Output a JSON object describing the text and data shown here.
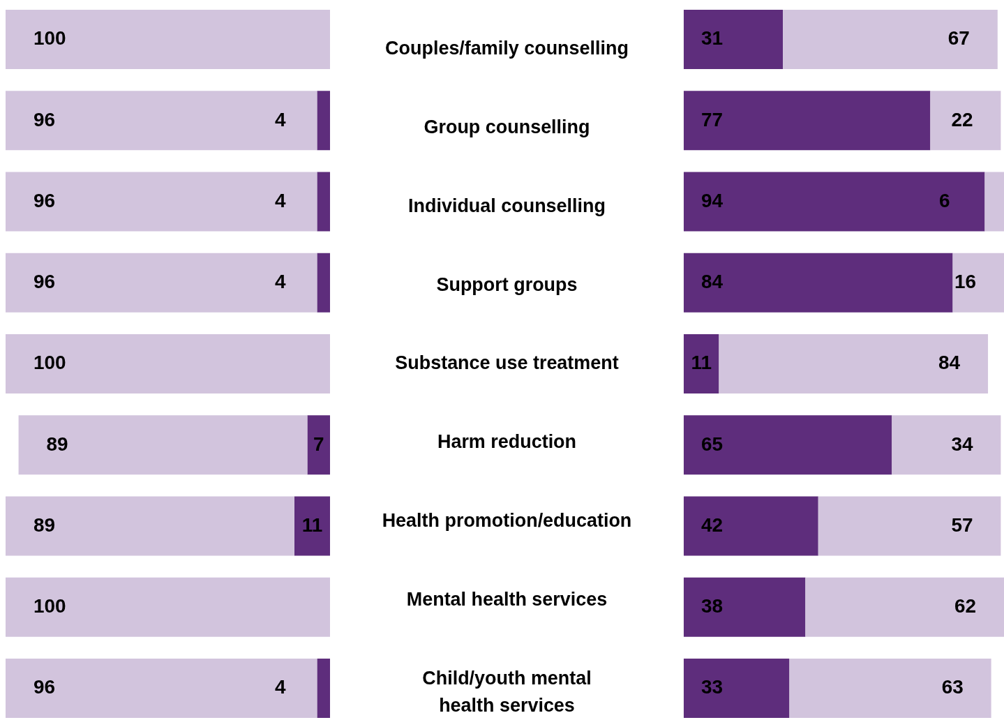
{
  "chart_data": [
    {
      "type": "bar",
      "orientation": "horizontal",
      "stacked": true,
      "data_labels": true,
      "tick_labels": false,
      "xlim": [
        100,
        0
      ],
      "categories": [
        null,
        null,
        null,
        null,
        null,
        null,
        null,
        null,
        null
      ],
      "series": [
        {
          "color": "#5e2d7c",
          "values": [
            null,
            4,
            4,
            4,
            null,
            7,
            11,
            null,
            4
          ]
        },
        {
          "color": "#d2c4dd",
          "values": [
            100,
            96,
            96,
            96,
            100,
            89,
            89,
            100,
            96
          ]
        }
      ]
    },
    {
      "type": "bar",
      "orientation": "horizontal",
      "stacked": true,
      "data_labels": true,
      "tick_labels": false,
      "xlim": [
        0,
        100
      ],
      "categories": [
        "Couples/family counselling",
        "Group counselling",
        "Individual counselling",
        "Support groups",
        "Substance use treatment",
        "Harm reduction",
        "Health promotion/education",
        "Mental health services",
        "Child/youth mental health services"
      ],
      "series": [
        {
          "color": "#5e2d7c",
          "values": [
            31,
            77,
            94,
            84,
            11,
            65,
            42,
            38,
            33
          ]
        },
        {
          "color": "#d2c4dd",
          "values": [
            67,
            22,
            6,
            16,
            84,
            34,
            57,
            62,
            63
          ]
        }
      ]
    }
  ]
}
